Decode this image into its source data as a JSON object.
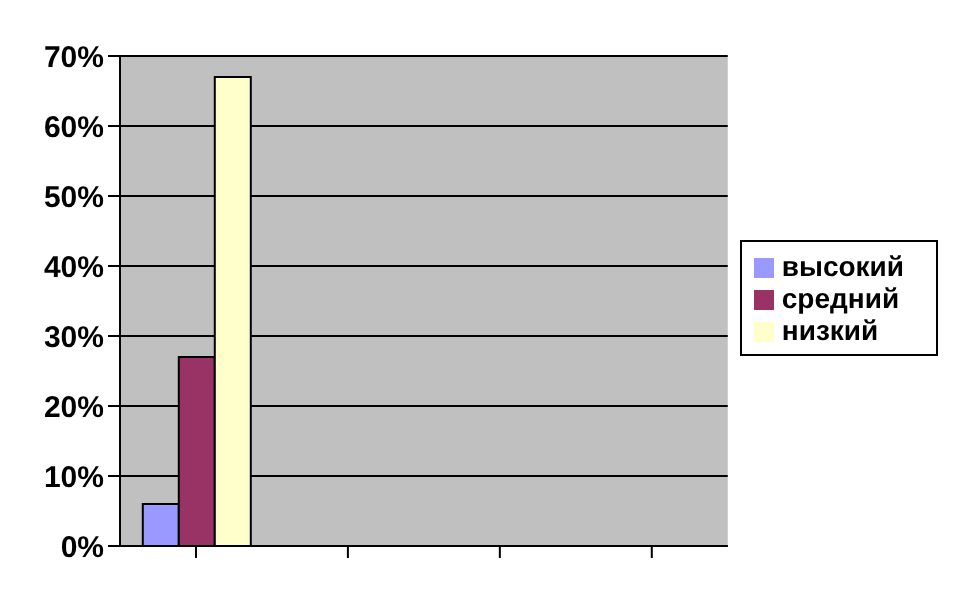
{
  "chart_data": {
    "type": "bar",
    "categories": [
      null,
      null,
      null,
      null
    ],
    "series": [
      {
        "name": "высокий",
        "color": "#9999ff",
        "values": [
          6,
          null,
          null,
          null
        ]
      },
      {
        "name": "средний",
        "color": "#993366",
        "values": [
          27,
          null,
          null,
          null
        ]
      },
      {
        "name": "низкий",
        "color": "#ffffcc",
        "values": [
          67,
          null,
          null,
          null
        ]
      }
    ],
    "ylim": [
      0,
      70
    ],
    "yticks": [
      {
        "value": 0,
        "label": "0%"
      },
      {
        "value": 10,
        "label": "10%"
      },
      {
        "value": 20,
        "label": "20%"
      },
      {
        "value": 30,
        "label": "30%"
      },
      {
        "value": 40,
        "label": "40%"
      },
      {
        "value": 50,
        "label": "50%"
      },
      {
        "value": 60,
        "label": "60%"
      },
      {
        "value": 70,
        "label": "70%"
      }
    ],
    "grid": "y",
    "legend": "right"
  }
}
